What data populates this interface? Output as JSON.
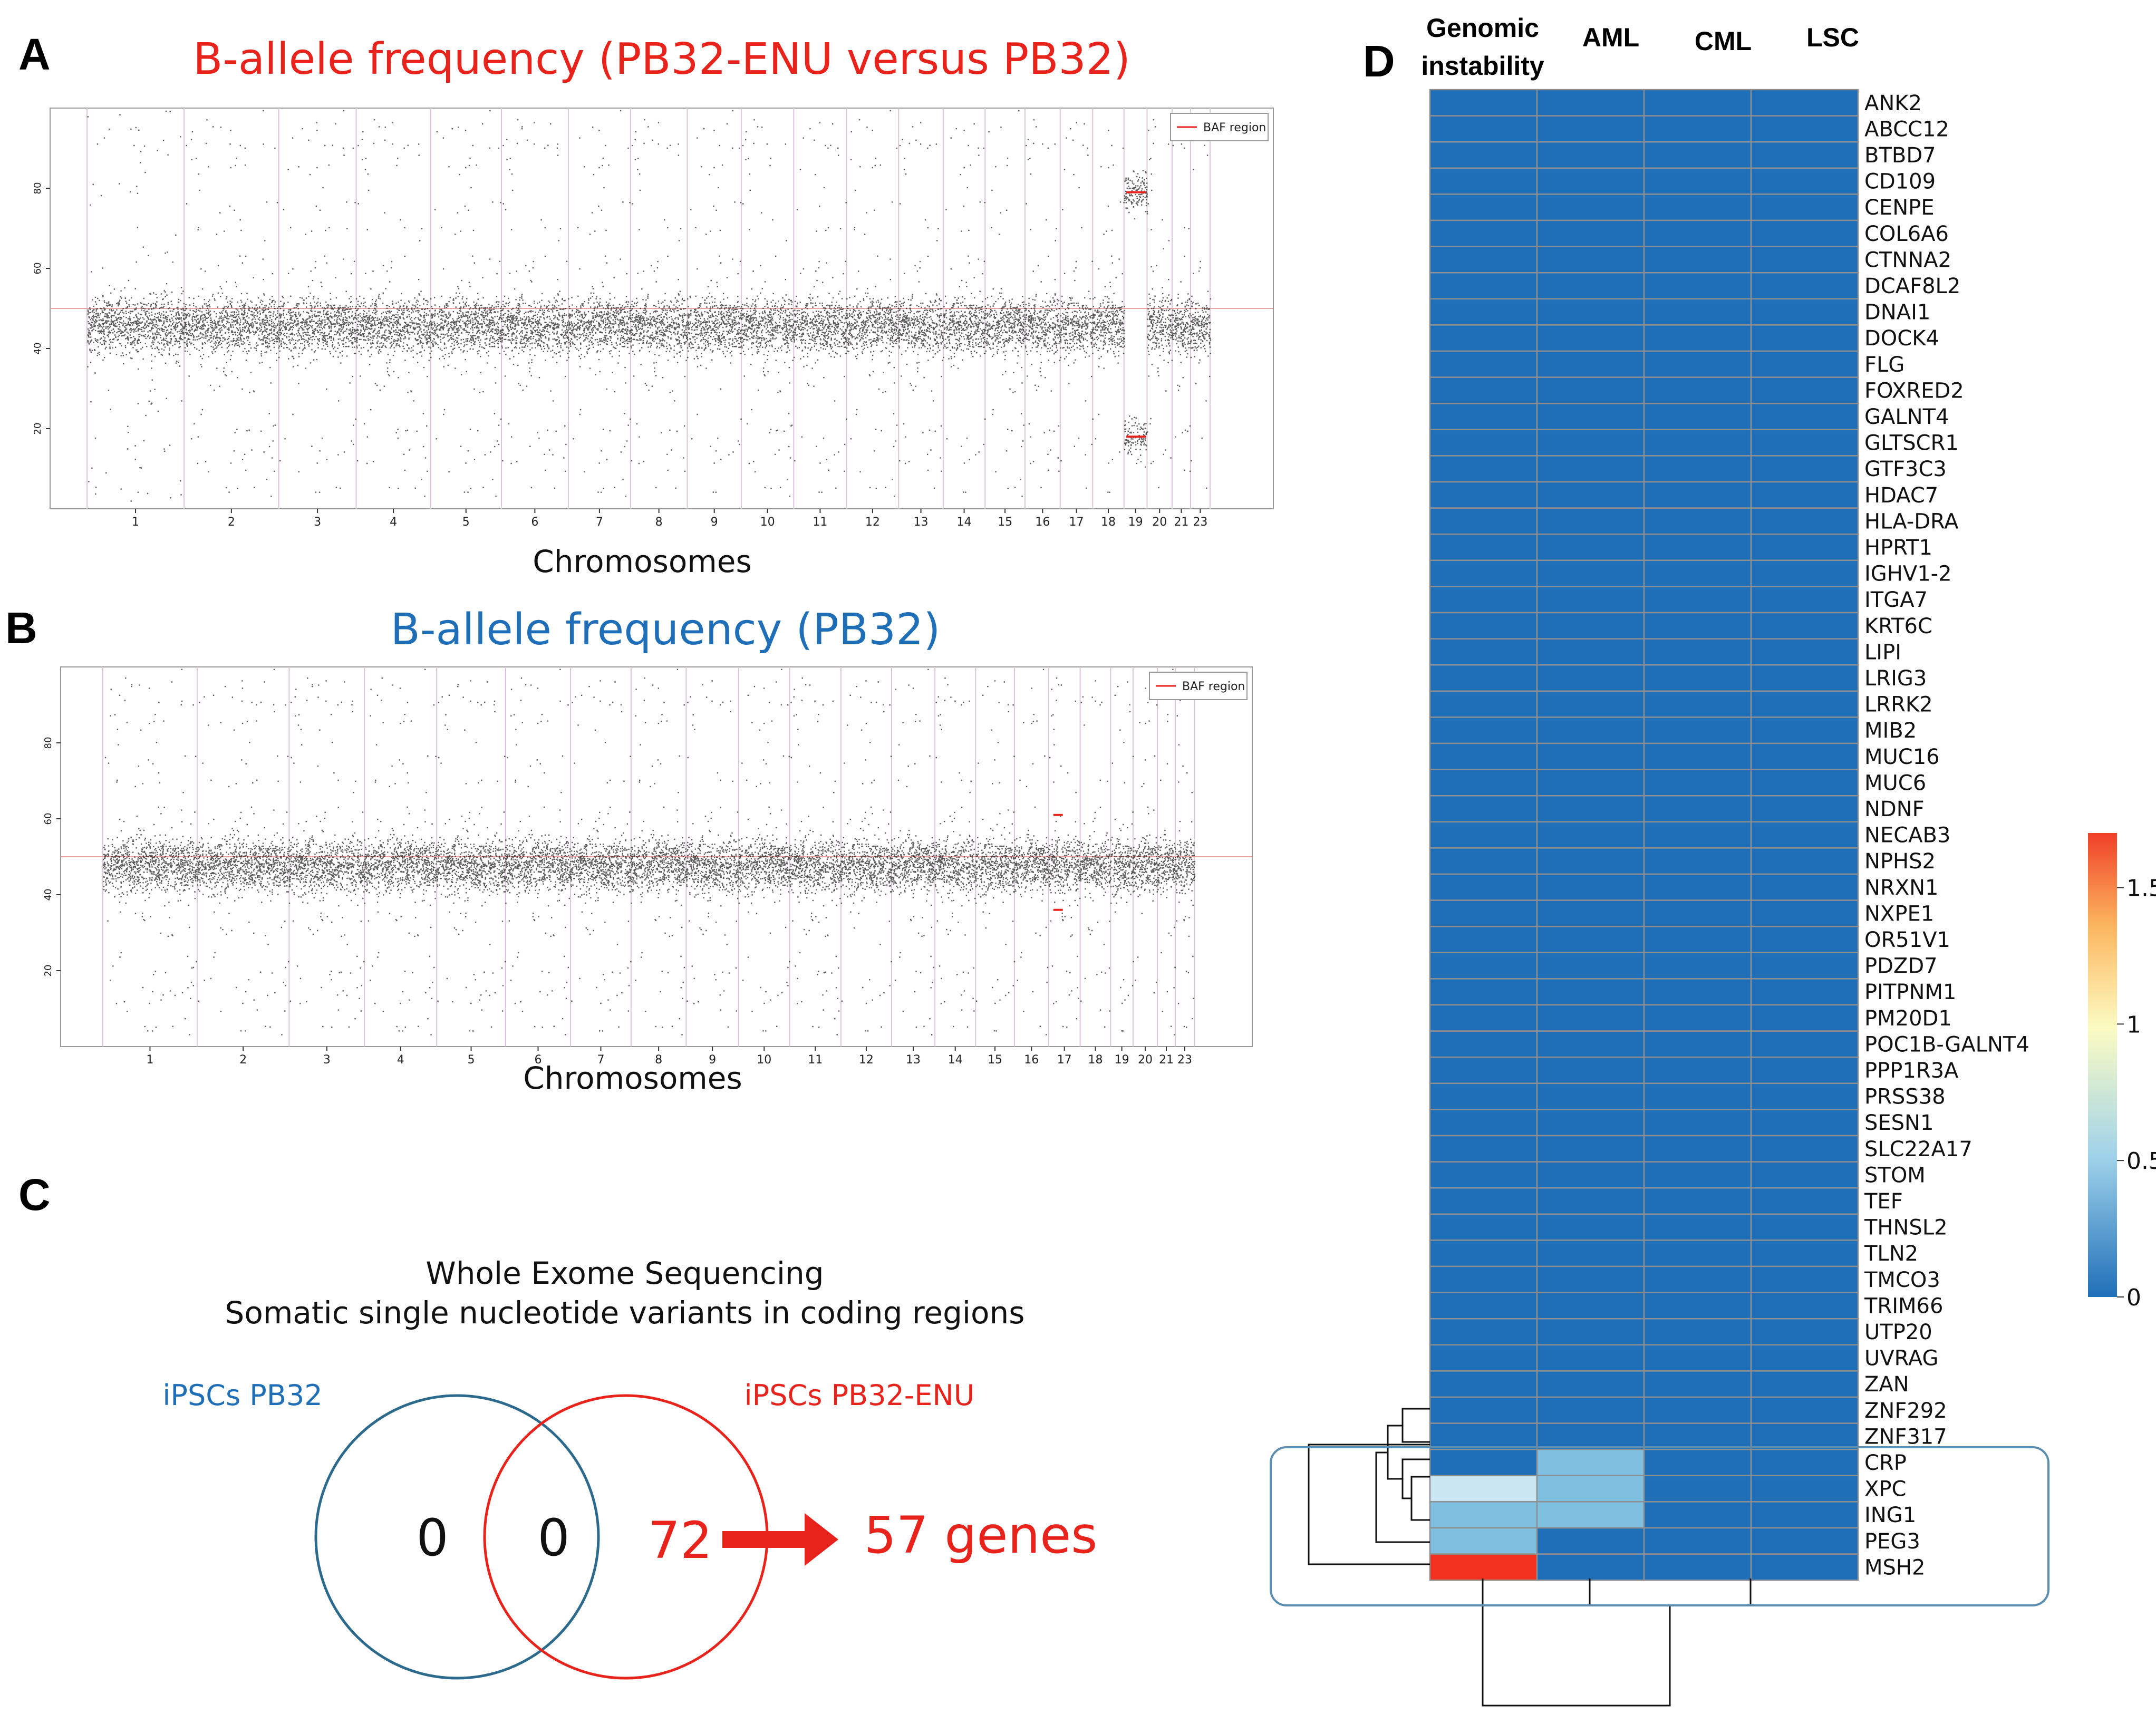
{
  "panels": {
    "a": "A",
    "b": "B",
    "c": "C",
    "d": "D"
  },
  "colors": {
    "red": "#e8231c",
    "blue": "#1f6fb8",
    "venn_left": "#2b6a8c",
    "venn_right": "#e8231c",
    "bracket": "#5b8eb0"
  },
  "chart_data": [
    {
      "type": "scatter",
      "panel": "A",
      "title": "B-allele frequency (PB32-ENU versus PB32)",
      "xlabel": "Chromosomes",
      "ylabel": "",
      "ylim": [
        0,
        100
      ],
      "yticks": [
        20,
        40,
        60,
        80
      ],
      "chromosome_labels": [
        "1",
        "2",
        "3",
        "4",
        "5",
        "6",
        "7",
        "8",
        "9",
        "10",
        "11",
        "12",
        "13",
        "14",
        "15",
        "16",
        "17",
        "18",
        "19",
        "20",
        "21",
        "23"
      ],
      "chromosome_boundaries_relative": [
        0.095,
        0.195,
        0.262,
        0.312,
        0.362,
        0.426,
        0.509,
        0.561,
        0.603,
        0.662,
        0.743,
        0.814,
        0.855,
        0.895,
        0.941,
        0.998,
        1.061,
        1.108,
        1.169,
        1.225,
        1.248,
        1.271
      ],
      "legend": {
        "label": "BAF region",
        "position": "top-right"
      },
      "baseline": 50,
      "bands": [
        {
          "median": 46,
          "spread": 5,
          "note": "all chromosomes except 19"
        }
      ],
      "baf_regions": [
        {
          "chromosome": "19",
          "values": [
            79,
            18
          ]
        }
      ]
    },
    {
      "type": "scatter",
      "panel": "B",
      "title": "B-allele frequency (PB32)",
      "xlabel": "Chromosomes",
      "ylabel": "",
      "ylim": [
        0,
        100
      ],
      "yticks": [
        20,
        40,
        60,
        80
      ],
      "chromosome_labels": [
        "1",
        "2",
        "3",
        "4",
        "5",
        "6",
        "7",
        "8",
        "9",
        "10",
        "11",
        "12",
        "13",
        "14",
        "15",
        "16",
        "17",
        "18",
        "19",
        "20",
        "21",
        "23"
      ],
      "legend": {
        "label": "BAF region",
        "position": "top-right"
      },
      "baseline": 50,
      "bands": [
        {
          "median": 48,
          "spread": 5,
          "note": "all chromosomes"
        }
      ],
      "baf_regions": [
        {
          "chromosome": "17",
          "values": [
            61,
            36
          ]
        }
      ]
    },
    {
      "type": "venn",
      "panel": "C",
      "title_line1": "Whole Exome Sequencing",
      "title_line2": "Somatic single nucleotide variants in coding regions",
      "sets": [
        {
          "name": "iPSCs PB32",
          "only": 0
        },
        {
          "name": "iPSCs PB32-ENU",
          "only": 72
        }
      ],
      "intersection": 0,
      "result": "57 genes"
    },
    {
      "type": "heatmap",
      "panel": "D",
      "columns": [
        "Genomic instability",
        "AML",
        "CML",
        "LSC"
      ],
      "column_header_lines": [
        [
          "Genomic",
          "instability"
        ],
        [
          "AML"
        ],
        [
          "CML"
        ],
        [
          "LSC"
        ]
      ],
      "rows": [
        "ANK2",
        "ABCC12",
        "BTBD7",
        "CD109",
        "CENPE",
        "COL6A6",
        "CTNNA2",
        "DCAF8L2",
        "DNAI1",
        "DOCK4",
        "FLG",
        "FOXRED2",
        "GALNT4",
        "GLTSCR1",
        "GTF3C3",
        "HDAC7",
        "HLA-DRA",
        "HPRT1",
        "IGHV1-2",
        "ITGA7",
        "KRT6C",
        "LIPI",
        "LRIG3",
        "LRRK2",
        "MIB2",
        "MUC16",
        "MUC6",
        "NDNF",
        "NECAB3",
        "NPHS2",
        "NRXN1",
        "NXPE1",
        "OR51V1",
        "PDZD7",
        "PITPNM1",
        "PM20D1",
        "POC1B-GALNT4",
        "PPP1R3A",
        "PRSS38",
        "SESN1",
        "SLC22A17",
        "STOM",
        "TEF",
        "THNSL2",
        "TLN2",
        "TMCO3",
        "TRIM66",
        "UTP20",
        "UVRAG",
        "ZAN",
        "ZNF292",
        "ZNF317",
        "CRP",
        "XPC",
        "ING1",
        "PEG3",
        "MSH2"
      ],
      "nonzero_values": [
        {
          "row": "CRP",
          "column": "AML",
          "value": 0.45
        },
        {
          "row": "XPC",
          "column": "Genomic instability",
          "value": 0.35
        },
        {
          "row": "XPC",
          "column": "AML",
          "value": 0.45
        },
        {
          "row": "ING1",
          "column": "Genomic instability",
          "value": 0.45
        },
        {
          "row": "ING1",
          "column": "AML",
          "value": 0.45
        },
        {
          "row": "PEG3",
          "column": "Genomic instability",
          "value": 0.45
        },
        {
          "row": "MSH2",
          "column": "Genomic instability",
          "value": 1.7
        }
      ],
      "default_value": 0,
      "colorbar": {
        "min": 0,
        "max": 1.7,
        "ticks": [
          "0",
          "0.5",
          "1",
          "1.5"
        ],
        "tick_values": [
          0,
          0.5,
          1,
          1.5
        ]
      },
      "highlighted_rows": [
        "CRP",
        "XPC",
        "ING1",
        "PEG3",
        "MSH2"
      ]
    }
  ]
}
